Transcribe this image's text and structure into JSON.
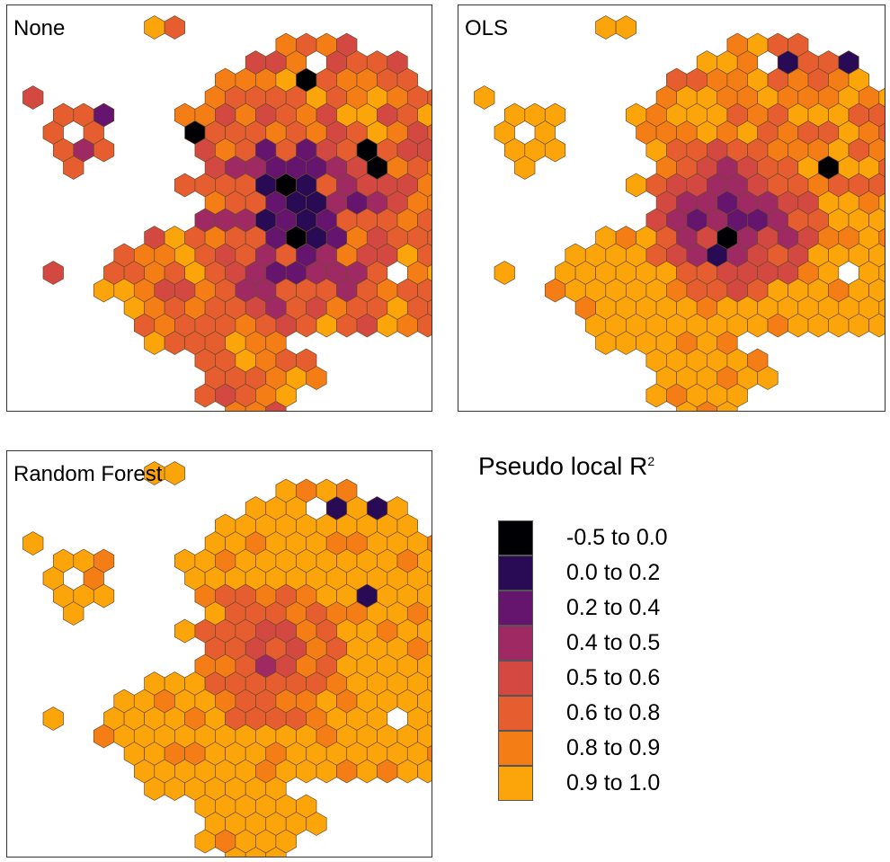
{
  "colors": {
    "c0": "#000004",
    "c1": "#280b54",
    "c2": "#65156e",
    "c3": "#9f2a63",
    "c4": "#d44842",
    "c5": "#e65d2f",
    "c6": "#f57d15",
    "c7": "#fca50a",
    "hex_stroke": "#6b4a2a"
  },
  "panels": [
    {
      "id": "none",
      "title": "None"
    },
    {
      "id": "ols",
      "title": "OLS"
    },
    {
      "id": "rf",
      "title": "Random Forest"
    }
  ],
  "legend": {
    "title": "Pseudo local R",
    "title_sup": "2",
    "items": [
      {
        "label": "-0.5 to 0.0",
        "color": "#000004"
      },
      {
        "label": "0.0 to 0.2",
        "color": "#280b54"
      },
      {
        "label": "0.2 to 0.4",
        "color": "#65156e"
      },
      {
        "label": "0.4 to 0.5",
        "color": "#9f2a63"
      },
      {
        "label": "0.5 to 0.6",
        "color": "#d44842"
      },
      {
        "label": "0.6 to 0.8",
        "color": "#e65d2f"
      },
      {
        "label": "0.8 to 0.9",
        "color": "#f57d15"
      },
      {
        "label": "0.9 to 1.0",
        "color": "#fca50a"
      }
    ]
  }
}
